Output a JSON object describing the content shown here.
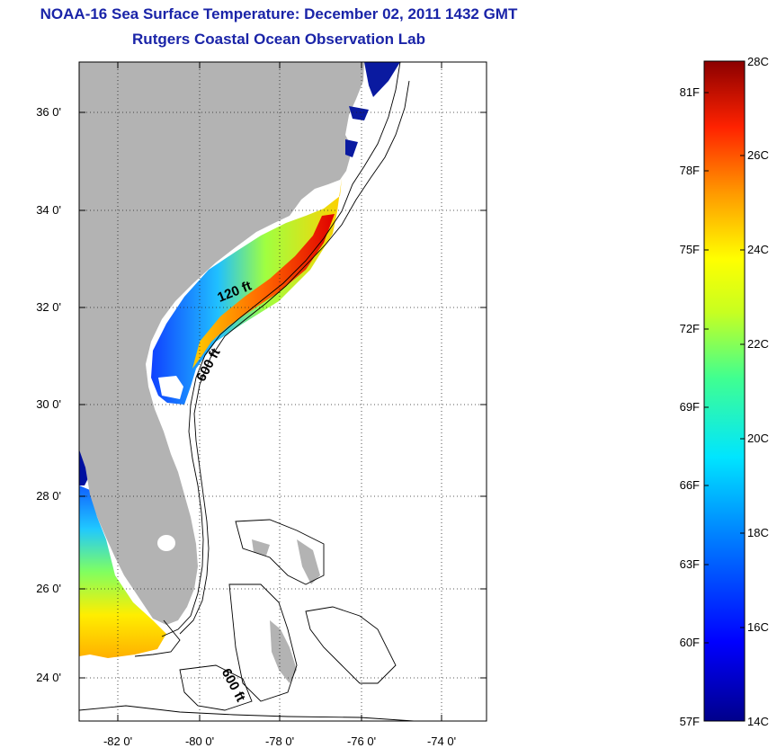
{
  "title": "NOAA-16 Sea Surface Temperature:  December 02, 2011 1432 GMT",
  "subtitle": "Rutgers Coastal Ocean Observation Lab",
  "map": {
    "lat_ticks": [
      "36 0'",
      "34 0'",
      "32 0'",
      "30 0'",
      "28 0'",
      "26 0'",
      "24 0'"
    ],
    "lon_ticks": [
      "-82 0'",
      "-80 0'",
      "-78 0'",
      "-76 0'",
      "-74 0'"
    ],
    "contour_labels": [
      "120 ft",
      "600 ft",
      "600 ft"
    ]
  },
  "colorbar": {
    "fahrenheit": [
      "81F",
      "78F",
      "75F",
      "72F",
      "69F",
      "66F",
      "63F",
      "60F",
      "57F"
    ],
    "celsius": [
      "28C",
      "26C",
      "24C",
      "22C",
      "20C",
      "18C",
      "16C",
      "14C"
    ]
  },
  "colors": {
    "title": "#1a24a8",
    "land": "#b3b3b3",
    "cold": "#00008b",
    "warm": "#8b0000"
  }
}
